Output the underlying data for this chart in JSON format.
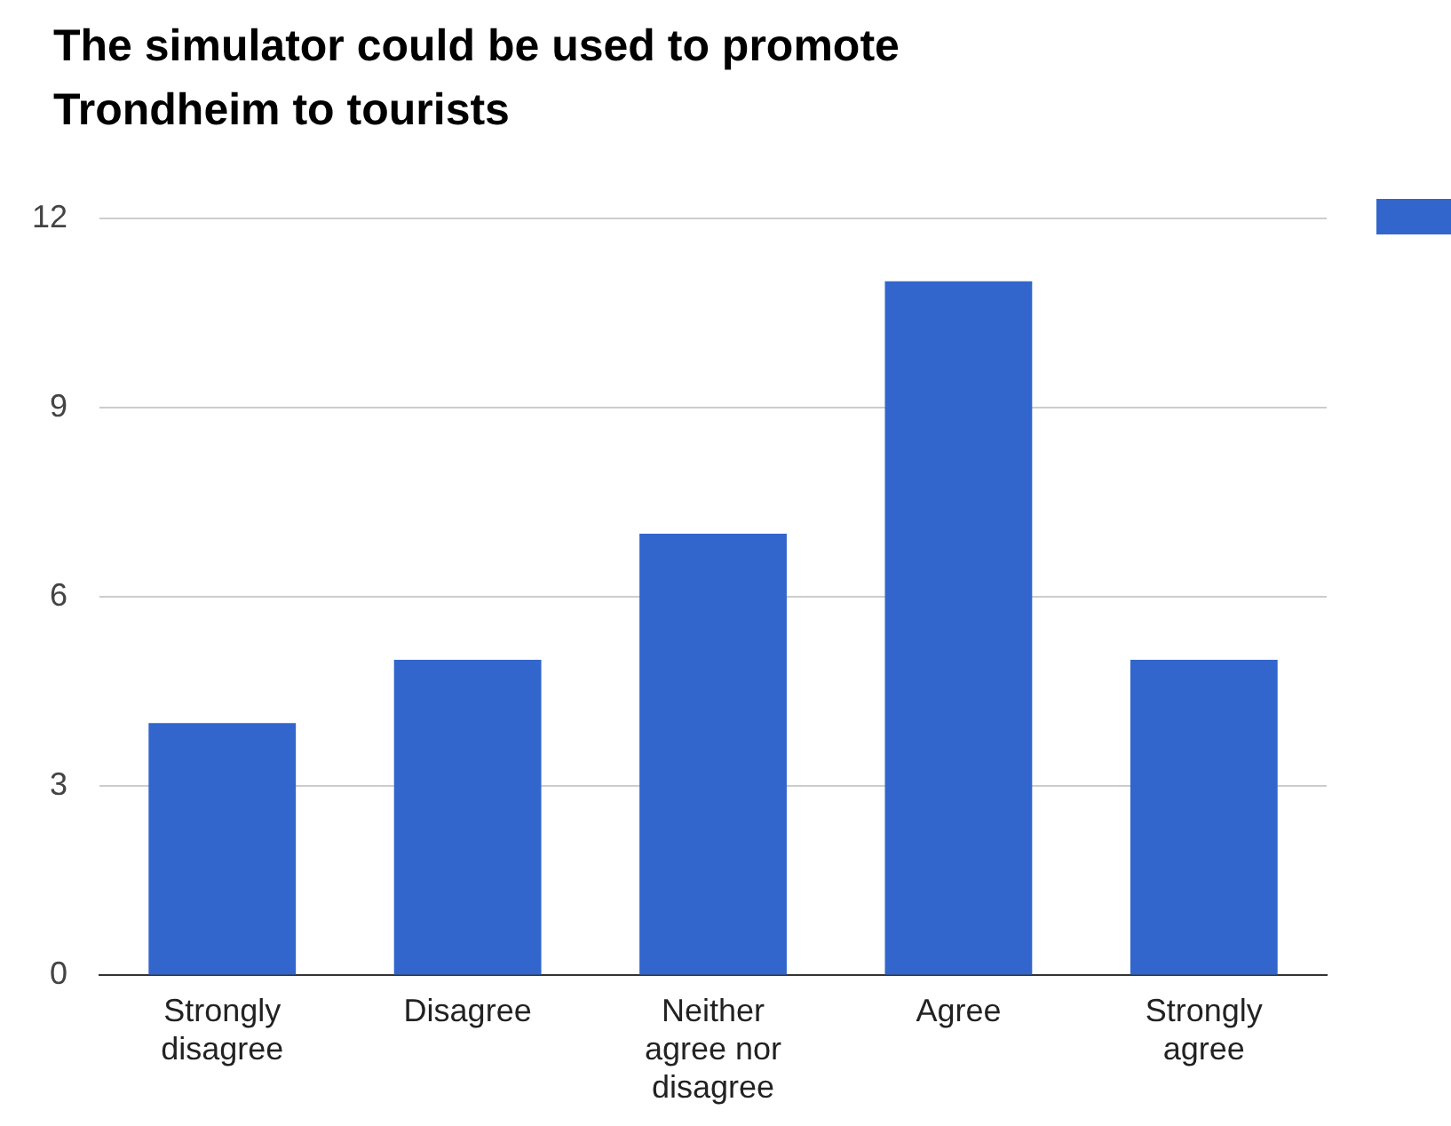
{
  "chart_data": {
    "type": "bar",
    "title": "The simulator could be used to promote Trondheim to tourists",
    "categories": [
      "Strongly disagree",
      "Disagree",
      "Neither agree nor disagree",
      "Agree",
      "Strongly agree"
    ],
    "series": [
      {
        "color": "#3366cc",
        "values": [
          4,
          5,
          7,
          11,
          5
        ]
      }
    ],
    "ylim": [
      0,
      12
    ],
    "yticks": [
      0,
      3,
      6,
      9,
      12
    ],
    "grid": "y"
  }
}
